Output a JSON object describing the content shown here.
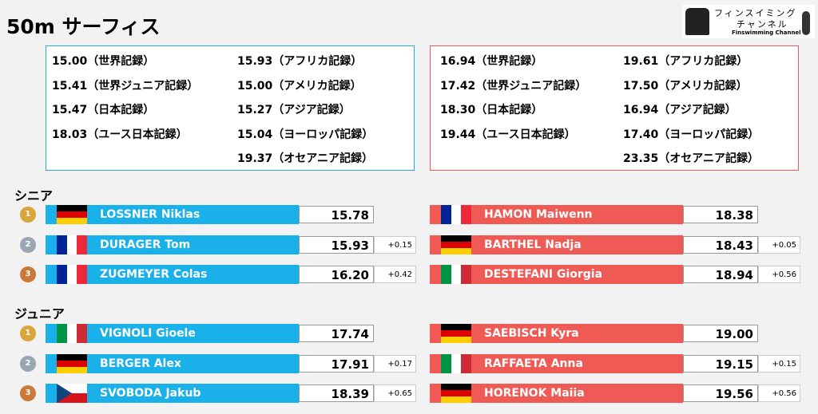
{
  "header": {
    "title": "50m サーフィス",
    "logo": {
      "line1": "フィンスイミング",
      "line2": "チャンネル",
      "line3": "Finswimming Channel"
    }
  },
  "records": {
    "men": {
      "col1": [
        "15.00（世界記録）",
        "15.41（世界ジュニア記録）",
        "15.47（日本記録）",
        "18.03（ユース日本記録）"
      ],
      "col2": [
        "15.93（アフリカ記録）",
        "15.00（アメリカ記録）",
        "15.27（アジア記録）",
        "15.04（ヨーロッパ記録）",
        "19.37（オセアニア記録）"
      ]
    },
    "women": {
      "col1": [
        "16.94（世界記録）",
        "17.42（世界ジュニア記録）",
        "18.30（日本記録）",
        "19.44（ユース日本記録）"
      ],
      "col2": [
        "19.61（アフリカ記録）",
        "17.50（アメリカ記録）",
        "16.94（アジア記録）",
        "17.40（ヨーロッパ記録）",
        "23.35（オセアニア記録）"
      ]
    }
  },
  "sections": [
    {
      "label": "シニア",
      "men": [
        {
          "rank": 1,
          "name": "LOSSNER Niklas",
          "time": "15.78"
        },
        {
          "rank": 2,
          "name": "DURAGER Tom",
          "time": "15.93",
          "diff": "+0.15"
        },
        {
          "rank": 3,
          "name": "ZUGMEYER Colas",
          "time": "16.20",
          "diff": "+0.42"
        }
      ],
      "women": [
        {
          "name": "HAMON Maiwenn",
          "time": "18.38"
        },
        {
          "name": "BARTHEL Nadja",
          "time": "18.43",
          "diff": "+0.05"
        },
        {
          "name": "DESTEFANI Giorgia",
          "time": "18.94",
          "diff": "+0.56"
        }
      ]
    },
    {
      "label": "ジュニア",
      "men": [
        {
          "rank": 1,
          "name": "VIGNOLI Gioele",
          "time": "17.74"
        },
        {
          "rank": 2,
          "name": "BERGER Alex",
          "time": "17.91",
          "diff": "+0.17"
        },
        {
          "rank": 3,
          "name": "SVOBODA Jakub",
          "time": "18.39",
          "diff": "+0.65"
        }
      ],
      "women": [
        {
          "name": "SAEBISCH Kyra",
          "time": "19.00"
        },
        {
          "name": "RAFFAETA Anna",
          "time": "19.15",
          "diff": "+0.15"
        },
        {
          "name": "HORENOK Maiia",
          "time": "19.56",
          "diff": "+0.56"
        }
      ]
    }
  ]
}
